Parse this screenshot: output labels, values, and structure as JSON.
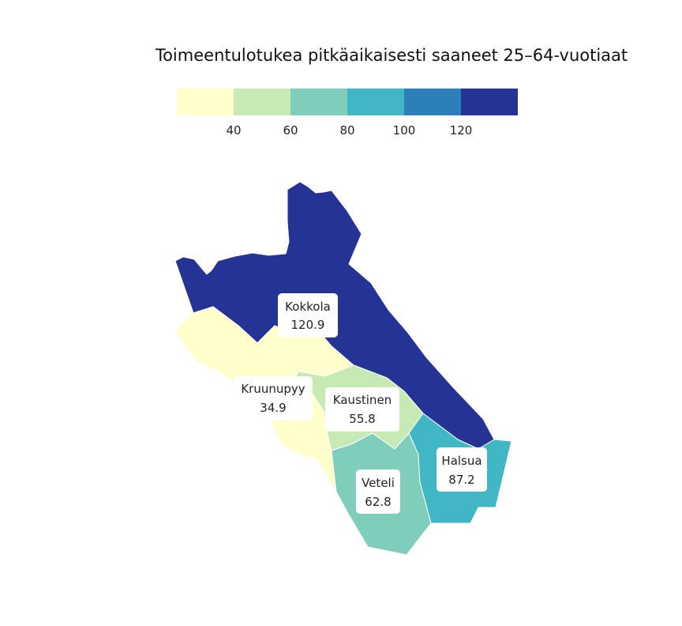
{
  "title": "Toimeentulotukea pitkäaikaisesti saaneet 25–64-vuotiaat",
  "legend": {
    "bins": [
      {
        "color": "#ffffcc"
      },
      {
        "color": "#c7e9b4"
      },
      {
        "color": "#7fcdbb"
      },
      {
        "color": "#41b6c4"
      },
      {
        "color": "#2c7fb8"
      },
      {
        "color": "#253494"
      }
    ],
    "ticks": [
      "40",
      "60",
      "80",
      "100",
      "120"
    ]
  },
  "regions": [
    {
      "name": "Kokkola",
      "value": "120.9",
      "color": "#253494"
    },
    {
      "name": "Kruunupyy",
      "value": "34.9",
      "color": "#ffffcc"
    },
    {
      "name": "Kaustinen",
      "value": "55.8",
      "color": "#c7e9b4"
    },
    {
      "name": "Veteli",
      "value": "62.8",
      "color": "#7fcdbb"
    },
    {
      "name": "Halsua",
      "value": "87.2",
      "color": "#41b6c4"
    }
  ]
}
